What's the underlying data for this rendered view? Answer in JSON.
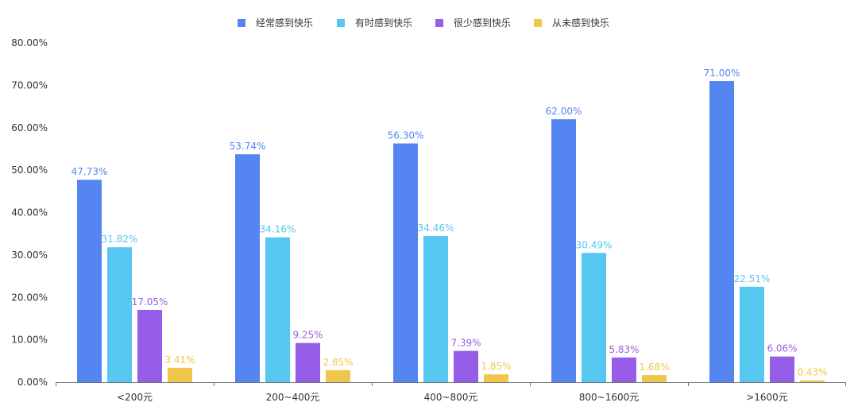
{
  "chart_data": {
    "type": "bar",
    "categories": [
      "<200元",
      "200~400元",
      "400~800元",
      "800~1600元",
      ">1600元"
    ],
    "series": [
      {
        "name": "经常感到快乐",
        "color": "#5585F0",
        "values": [
          47.73,
          53.74,
          56.3,
          62.0,
          71.0
        ],
        "labels": [
          "47.73%",
          "53.74%",
          "56.30%",
          "62.00%",
          "71.00%"
        ]
      },
      {
        "name": "有时感到快乐",
        "color": "#56C7F0",
        "values": [
          31.82,
          34.16,
          34.46,
          30.49,
          22.51
        ],
        "labels": [
          "31.82%",
          "34.16%",
          "34.46%",
          "30.49%",
          "22.51%"
        ]
      },
      {
        "name": "很少感到快乐",
        "color": "#965EE8",
        "values": [
          17.05,
          9.25,
          7.39,
          5.83,
          6.06
        ],
        "labels": [
          "17.05%",
          "9.25%",
          "7.39%",
          "5.83%",
          "6.06%"
        ]
      },
      {
        "name": "从未感到快乐",
        "color": "#F0C74E",
        "values": [
          3.41,
          2.85,
          1.85,
          1.68,
          0.43
        ],
        "labels": [
          "3.41%",
          "2.85%",
          "1.85%",
          "1.68%",
          "0.43%"
        ]
      }
    ],
    "yticks": [
      "0.00%",
      "10.00%",
      "20.00%",
      "30.00%",
      "40.00%",
      "50.00%",
      "60.00%",
      "70.00%",
      "80.00%"
    ],
    "ylim": [
      0,
      80
    ],
    "legend_position": "top-center",
    "grid": false
  }
}
